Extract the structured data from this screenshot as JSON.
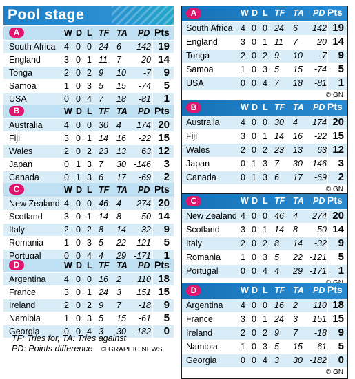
{
  "title": "Pool stage",
  "headers": {
    "w": "W",
    "d": "D",
    "l": "L",
    "tf": "TF",
    "ta": "TA",
    "pd": "PD",
    "pts": "Pts"
  },
  "pools": [
    {
      "letter": "A",
      "teams": [
        {
          "name": "South Africa",
          "w": "4",
          "d": "0",
          "l": "0",
          "tf": "24",
          "ta": "6",
          "pd": "142",
          "pts": "19"
        },
        {
          "name": "England",
          "w": "3",
          "d": "0",
          "l": "1",
          "tf": "11",
          "ta": "7",
          "pd": "20",
          "pts": "14"
        },
        {
          "name": "Tonga",
          "w": "2",
          "d": "0",
          "l": "2",
          "tf": "9",
          "ta": "10",
          "pd": "-7",
          "pts": "9"
        },
        {
          "name": "Samoa",
          "w": "1",
          "d": "0",
          "l": "3",
          "tf": "5",
          "ta": "15",
          "pd": "-74",
          "pts": "5"
        },
        {
          "name": "USA",
          "w": "0",
          "d": "0",
          "l": "4",
          "tf": "7",
          "ta": "18",
          "pd": "-81",
          "pts": "1"
        }
      ]
    },
    {
      "letter": "B",
      "teams": [
        {
          "name": "Australia",
          "w": "4",
          "d": "0",
          "l": "0",
          "tf": "30",
          "ta": "4",
          "pd": "174",
          "pts": "20"
        },
        {
          "name": "Fiji",
          "w": "3",
          "d": "0",
          "l": "1",
          "tf": "14",
          "ta": "16",
          "pd": "-22",
          "pts": "15"
        },
        {
          "name": "Wales",
          "w": "2",
          "d": "0",
          "l": "2",
          "tf": "23",
          "ta": "13",
          "pd": "63",
          "pts": "12"
        },
        {
          "name": "Japan",
          "w": "0",
          "d": "1",
          "l": "3",
          "tf": "7",
          "ta": "30",
          "pd": "-146",
          "pts": "3"
        },
        {
          "name": "Canada",
          "w": "0",
          "d": "1",
          "l": "3",
          "tf": "6",
          "ta": "17",
          "pd": "-69",
          "pts": "2"
        }
      ]
    },
    {
      "letter": "C",
      "teams": [
        {
          "name": "New Zealand",
          "w": "4",
          "d": "0",
          "l": "0",
          "tf": "46",
          "ta": "4",
          "pd": "274",
          "pts": "20"
        },
        {
          "name": "Scotland",
          "w": "3",
          "d": "0",
          "l": "1",
          "tf": "14",
          "ta": "8",
          "pd": "50",
          "pts": "14"
        },
        {
          "name": "Italy",
          "w": "2",
          "d": "0",
          "l": "2",
          "tf": "8",
          "ta": "14",
          "pd": "-32",
          "pts": "9"
        },
        {
          "name": "Romania",
          "w": "1",
          "d": "0",
          "l": "3",
          "tf": "5",
          "ta": "22",
          "pd": "-121",
          "pts": "5"
        },
        {
          "name": "Portugal",
          "w": "0",
          "d": "0",
          "l": "4",
          "tf": "4",
          "ta": "29",
          "pd": "-171",
          "pts": "1"
        }
      ]
    },
    {
      "letter": "D",
      "teams": [
        {
          "name": "Argentina",
          "w": "4",
          "d": "0",
          "l": "0",
          "tf": "16",
          "ta": "2",
          "pd": "110",
          "pts": "18"
        },
        {
          "name": "France",
          "w": "3",
          "d": "0",
          "l": "1",
          "tf": "24",
          "ta": "3",
          "pd": "151",
          "pts": "15"
        },
        {
          "name": "Ireland",
          "w": "2",
          "d": "0",
          "l": "2",
          "tf": "9",
          "ta": "7",
          "pd": "-18",
          "pts": "9"
        },
        {
          "name": "Namibia",
          "w": "1",
          "d": "0",
          "l": "3",
          "tf": "5",
          "ta": "15",
          "pd": "-61",
          "pts": "5"
        },
        {
          "name": "Georgia",
          "w": "0",
          "d": "0",
          "l": "4",
          "tf": "3",
          "ta": "30",
          "pd": "-182",
          "pts": "0"
        }
      ]
    }
  ],
  "legend_line1": "TF: Tries for, TA: Tries against",
  "legend_line2": "PD: Points difference",
  "credit": "© GRAPHIC NEWS",
  "card_credit": "© GN",
  "colors": {
    "header_blue": "#1e7fc6",
    "row_light": "#d9edf8",
    "badge": "#e0156e"
  }
}
